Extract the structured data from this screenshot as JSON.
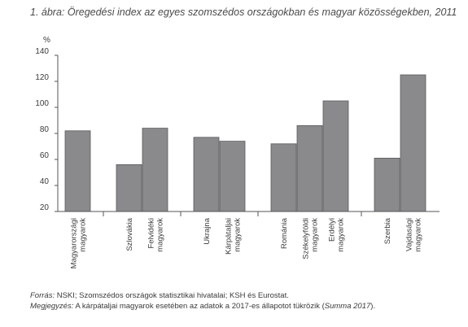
{
  "chart_data": {
    "type": "bar",
    "title": "1. ábra: Öregedési index az egyes szomszédos országokban és magyar közösségekben, 2011",
    "ylabel": "%",
    "ylim": [
      20,
      140
    ],
    "yticks": [
      20,
      40,
      60,
      80,
      100,
      120,
      140
    ],
    "grid": false,
    "bar_color": "#8a8a8d",
    "groups": [
      {
        "bars": [
          {
            "label": [
              "Magyarországi",
              "magyarok"
            ],
            "value": 82
          }
        ]
      },
      {
        "bars": [
          {
            "label": [
              "Szlovákia"
            ],
            "value": 56
          },
          {
            "label": [
              "Felvidéki",
              "magyarok"
            ],
            "value": 84
          }
        ]
      },
      {
        "bars": [
          {
            "label": [
              "Ukrajna"
            ],
            "value": 77
          },
          {
            "label": [
              "Kárpátaljai",
              "magyarok"
            ],
            "value": 74
          }
        ]
      },
      {
        "bars": [
          {
            "label": [
              "Románia"
            ],
            "value": 72
          },
          {
            "label": [
              "Székelyföldi",
              "magyarok"
            ],
            "value": 86
          },
          {
            "label": [
              "Erdélyi",
              "magyarok"
            ],
            "value": 105
          }
        ]
      },
      {
        "bars": [
          {
            "label": [
              "Szerbia"
            ],
            "value": 61
          },
          {
            "label": [
              "Vajdasági",
              "magyarok"
            ],
            "value": 125
          }
        ]
      }
    ]
  },
  "notes": {
    "source_label": "Forrás:",
    "source_text": " NSKI; Szomszédos országok statisztikai hivatalai; KSH és Eurostat.",
    "note_label": "Megjegyzés:",
    "note_text": " A kárpátaljai magyarok esetében az adatok a 2017-es állapotot tükrözik (",
    "note_ref": "Summa 2017",
    "note_end": ")."
  }
}
